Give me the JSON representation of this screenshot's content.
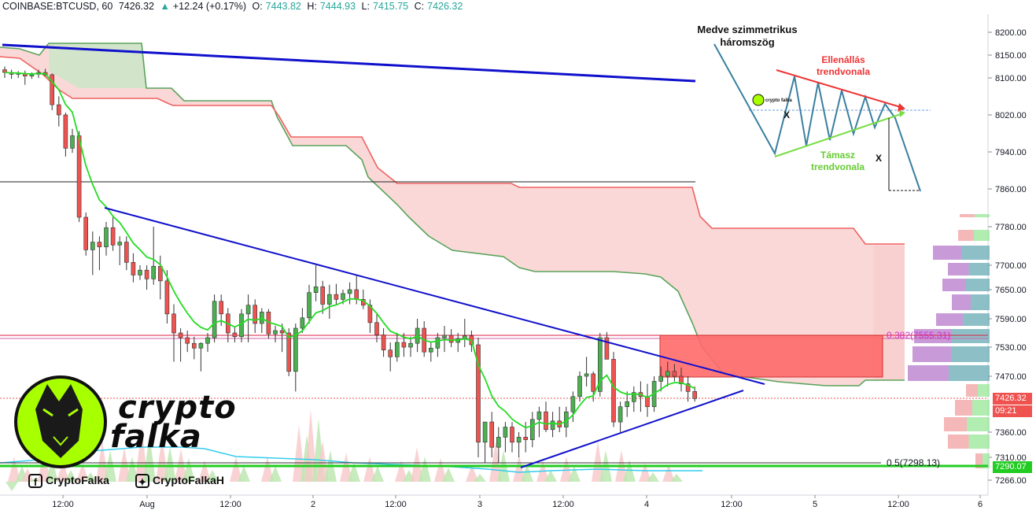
{
  "header": {
    "symbol": "COINBASE:BTCUSD, 60",
    "last": "7426.32",
    "arrow": "▲",
    "change": "+12.24 (+0.17%)",
    "o_label": "O:",
    "o_value": "7443.82",
    "h_label": "H:",
    "h_value": "7444.93",
    "l_label": "L:",
    "l_value": "7415.75",
    "c_label": "C:",
    "c_value": "7426.32"
  },
  "chart_data": {
    "type": "candlestick",
    "price_axis": {
      "ticks": [
        8200,
        8150,
        8100,
        8020,
        7940,
        7860,
        7780,
        7700,
        7650,
        7590,
        7530,
        7470,
        7360,
        7310,
        7266
      ],
      "tick_labels": [
        "8200.00",
        "8150.00",
        "8100.00",
        "8020.00",
        "7940.00",
        "7860.00",
        "7780.00",
        "7700.00",
        "7650.00",
        "7590.00",
        "7530.00",
        "7470.00",
        "7360.00",
        "7310.00",
        "7266.00"
      ],
      "scale": "nonlinear"
    },
    "time_axis": {
      "labels": [
        "12:00",
        "Aug",
        "12:00",
        "2",
        "12:00",
        "3",
        "12:00",
        "4",
        "12:00",
        "5",
        "12:00",
        "6"
      ]
    },
    "last_price_label": "7426.32",
    "countdown_label": "09:21",
    "support_price_label": "7290.07",
    "fib_levels": [
      {
        "label": "0.382(7555.31)",
        "color": "#cc33cc"
      },
      {
        "label": "0.5(7298.13)",
        "color": "#131722"
      }
    ],
    "candles_ohlc": [
      [
        8118,
        8125,
        8100,
        8112
      ],
      [
        8112,
        8118,
        8098,
        8108
      ],
      [
        8108,
        8115,
        8100,
        8110
      ],
      [
        8110,
        8116,
        8085,
        8104
      ],
      [
        8104,
        8112,
        8098,
        8108
      ],
      [
        8108,
        8118,
        8100,
        8112
      ],
      [
        8112,
        8120,
        8104,
        8107
      ],
      [
        8107,
        8110,
        8030,
        8042
      ],
      [
        8042,
        8060,
        7995,
        8020
      ],
      [
        8020,
        8025,
        7930,
        7948
      ],
      [
        7948,
        7990,
        7938,
        7975
      ],
      [
        7975,
        7985,
        7790,
        7800
      ],
      [
        7800,
        7810,
        7720,
        7732
      ],
      [
        7732,
        7770,
        7680,
        7748
      ],
      [
        7748,
        7760,
        7690,
        7738
      ],
      [
        7738,
        7790,
        7720,
        7778
      ],
      [
        7778,
        7800,
        7730,
        7742
      ],
      [
        7742,
        7760,
        7700,
        7748
      ],
      [
        7748,
        7760,
        7690,
        7706
      ],
      [
        7706,
        7725,
        7665,
        7680
      ],
      [
        7680,
        7700,
        7670,
        7690
      ],
      [
        7690,
        7700,
        7650,
        7672
      ],
      [
        7672,
        7780,
        7660,
        7698
      ],
      [
        7698,
        7720,
        7630,
        7668
      ],
      [
        7668,
        7690,
        7580,
        7600
      ],
      [
        7600,
        7620,
        7500,
        7560
      ],
      [
        7560,
        7570,
        7500,
        7550
      ],
      [
        7550,
        7565,
        7520,
        7538
      ],
      [
        7538,
        7552,
        7505,
        7528
      ],
      [
        7528,
        7540,
        7480,
        7538
      ],
      [
        7538,
        7560,
        7520,
        7550
      ],
      [
        7550,
        7640,
        7540,
        7626
      ],
      [
        7626,
        7640,
        7575,
        7600
      ],
      [
        7600,
        7612,
        7540,
        7560
      ],
      [
        7560,
        7574,
        7540,
        7552
      ],
      [
        7552,
        7610,
        7540,
        7600
      ],
      [
        7600,
        7640,
        7540,
        7618
      ],
      [
        7618,
        7630,
        7560,
        7580
      ],
      [
        7580,
        7612,
        7560,
        7604
      ],
      [
        7604,
        7610,
        7548,
        7558
      ],
      [
        7558,
        7575,
        7540,
        7565
      ],
      [
        7565,
        7580,
        7520,
        7560
      ],
      [
        7560,
        7570,
        7470,
        7480
      ],
      [
        7480,
        7580,
        7440,
        7570
      ],
      [
        7570,
        7612,
        7560,
        7592
      ],
      [
        7592,
        7660,
        7580,
        7644
      ],
      [
        7644,
        7700,
        7626,
        7656
      ],
      [
        7656,
        7668,
        7600,
        7620
      ],
      [
        7620,
        7660,
        7590,
        7640
      ],
      [
        7640,
        7662,
        7620,
        7630
      ],
      [
        7630,
        7650,
        7620,
        7642
      ],
      [
        7642,
        7665,
        7620,
        7650
      ],
      [
        7650,
        7678,
        7620,
        7630
      ],
      [
        7630,
        7650,
        7610,
        7618
      ],
      [
        7618,
        7630,
        7560,
        7582
      ],
      [
        7582,
        7600,
        7540,
        7556
      ],
      [
        7556,
        7570,
        7510,
        7524
      ],
      [
        7524,
        7540,
        7480,
        7510
      ],
      [
        7510,
        7560,
        7500,
        7540
      ],
      [
        7540,
        7560,
        7510,
        7530
      ],
      [
        7530,
        7552,
        7510,
        7538
      ],
      [
        7538,
        7590,
        7520,
        7570
      ],
      [
        7570,
        7585,
        7510,
        7520
      ],
      [
        7520,
        7540,
        7500,
        7528
      ],
      [
        7528,
        7560,
        7510,
        7550
      ],
      [
        7550,
        7575,
        7520,
        7555
      ],
      [
        7555,
        7568,
        7530,
        7540
      ],
      [
        7540,
        7560,
        7520,
        7548
      ],
      [
        7548,
        7590,
        7530,
        7554
      ],
      [
        7554,
        7565,
        7520,
        7535
      ],
      [
        7535,
        7550,
        7310,
        7340
      ],
      [
        7340,
        7370,
        7300,
        7380
      ],
      [
        7380,
        7400,
        7310,
        7330
      ],
      [
        7330,
        7370,
        7300,
        7350
      ],
      [
        7350,
        7380,
        7320,
        7370
      ],
      [
        7370,
        7380,
        7320,
        7340
      ],
      [
        7340,
        7360,
        7310,
        7350
      ],
      [
        7350,
        7380,
        7320,
        7345
      ],
      [
        7345,
        7400,
        7330,
        7385
      ],
      [
        7385,
        7410,
        7350,
        7400
      ],
      [
        7400,
        7420,
        7360,
        7365
      ],
      [
        7365,
        7400,
        7350,
        7382
      ],
      [
        7382,
        7410,
        7360,
        7370
      ],
      [
        7370,
        7410,
        7350,
        7400
      ],
      [
        7400,
        7440,
        7380,
        7430
      ],
      [
        7430,
        7480,
        7420,
        7470
      ],
      [
        7470,
        7510,
        7450,
        7475
      ],
      [
        7475,
        7480,
        7420,
        7440
      ],
      [
        7440,
        7560,
        7430,
        7550
      ],
      [
        7550,
        7562,
        7510,
        7505
      ],
      [
        7505,
        7520,
        7370,
        7380
      ],
      [
        7380,
        7420,
        7360,
        7410
      ],
      [
        7410,
        7440,
        7390,
        7420
      ],
      [
        7420,
        7450,
        7400,
        7438
      ],
      [
        7438,
        7460,
        7400,
        7430
      ],
      [
        7430,
        7455,
        7390,
        7410
      ],
      [
        7410,
        7470,
        7400,
        7460
      ],
      [
        7460,
        7490,
        7440,
        7470
      ],
      [
        7470,
        7500,
        7450,
        7480
      ],
      [
        7480,
        7495,
        7460,
        7470
      ],
      [
        7470,
        7488,
        7440,
        7455
      ],
      [
        7455,
        7470,
        7420,
        7440
      ],
      [
        7440,
        7450,
        7420,
        7426
      ]
    ]
  },
  "annotation": {
    "title": "Medve szimmetrikus háromszög",
    "resistance": "Ellenállás trendvonala",
    "support": "Támasz trendvonala",
    "marker_x1": "X",
    "marker_x2": "X",
    "mini_brand": "crypto falka"
  },
  "branding": {
    "logo_line1": "crypto",
    "logo_line2": "falka",
    "facebook": "CryptoFalka",
    "twitter": "CryptoFalkaH"
  },
  "colors": {
    "bull": "#4caf50",
    "bear": "#ef5350",
    "cloud_green": "#a5d6a7",
    "cloud_red": "#f8c8c8",
    "trendline": "#1010cc",
    "ema": "#22dd22",
    "lime": "#a8ff00"
  }
}
